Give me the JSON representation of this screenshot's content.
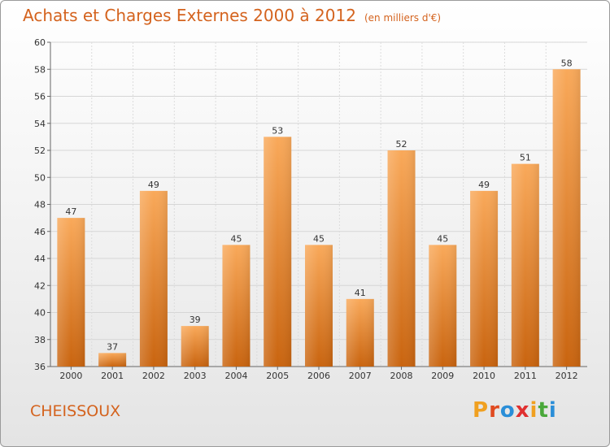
{
  "title": {
    "main": "Achats et Charges Externes 2000 à 2012",
    "unit": "(en milliers d'€)"
  },
  "location": "CHEISSOUX",
  "logo": {
    "letters": [
      "P",
      "r",
      "o",
      "x",
      "i",
      "t",
      "i"
    ],
    "colors": [
      "#f0a020",
      "#e04a20",
      "#2a8ed8",
      "#e03030",
      "#f0a020",
      "#4aa83a",
      "#2a8ed8"
    ]
  },
  "colors": {
    "bar_light": "#f9a95a",
    "bar_dark": "#c9640f",
    "title": "#d4631e"
  },
  "chart_data": {
    "type": "bar",
    "categories": [
      "2000",
      "2001",
      "2002",
      "2003",
      "2004",
      "2005",
      "2006",
      "2007",
      "2008",
      "2009",
      "2010",
      "2011",
      "2012"
    ],
    "values": [
      47,
      37,
      49,
      39,
      45,
      53,
      45,
      41,
      52,
      45,
      49,
      51,
      58
    ],
    "ylim": [
      36,
      60
    ],
    "yticks": [
      36,
      38,
      40,
      42,
      44,
      46,
      48,
      50,
      52,
      54,
      56,
      58,
      60
    ],
    "grid": true
  }
}
